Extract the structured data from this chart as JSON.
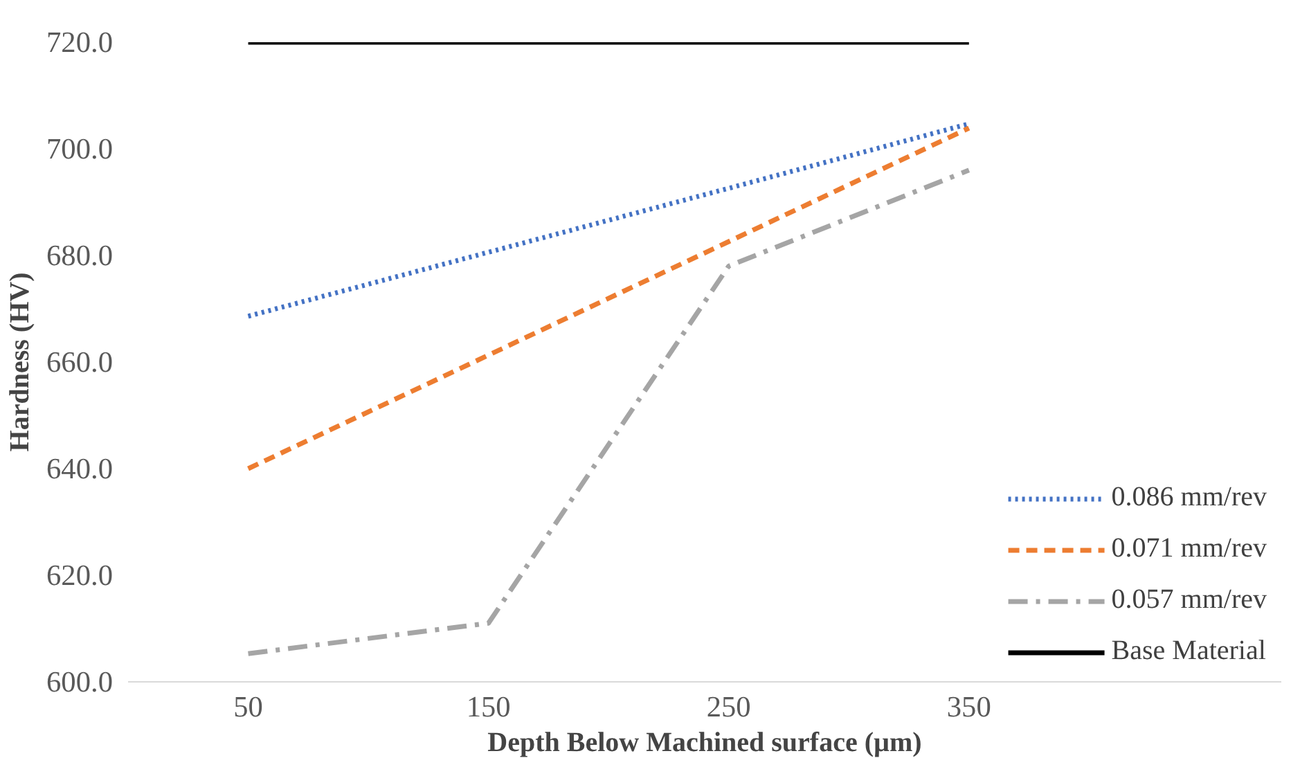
{
  "chart_data": {
    "type": "line",
    "xlabel": "Depth Below Machined surface (µm)",
    "ylabel": "Hardness (HV)",
    "categories": [
      "50",
      "150",
      "250",
      "350"
    ],
    "ylim": [
      600,
      720
    ],
    "yticks": [
      {
        "value": 600,
        "label": "600.0"
      },
      {
        "value": 620,
        "label": "620.0"
      },
      {
        "value": 640,
        "label": "640.0"
      },
      {
        "value": 660,
        "label": "660.0"
      },
      {
        "value": 680,
        "label": "680.0"
      },
      {
        "value": 700,
        "label": "700.0"
      },
      {
        "value": 720,
        "label": "720.0"
      }
    ],
    "grid": false,
    "legend": "bottom right",
    "marker": "none",
    "series": [
      {
        "name": "0.086 mm/rev",
        "color": "#4472c4",
        "line_style": "dotted",
        "values": [
          668.6,
          680.6,
          692.6,
          704.7
        ]
      },
      {
        "name": "0.071 mm/rev",
        "color": "#ed7d31",
        "line_style": "dashed",
        "values": [
          640,
          661.3,
          682.6,
          703.9
        ]
      },
      {
        "name": "0.057 mm/rev",
        "color": "#a5a5a5",
        "line_style": "dashdot",
        "values": [
          605.3,
          611,
          678,
          696
        ]
      },
      {
        "name": "Base Material",
        "color": "#000000",
        "line_style": "solid",
        "values": [
          720,
          720,
          720,
          720
        ]
      }
    ]
  }
}
